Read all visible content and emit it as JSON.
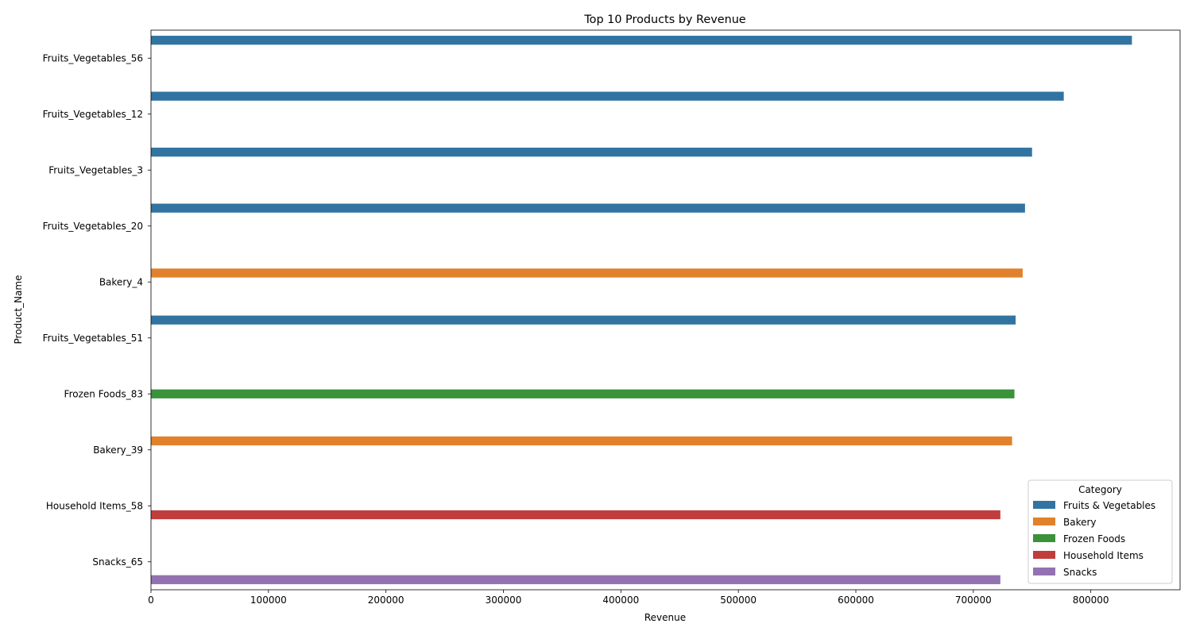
{
  "chart_data": {
    "type": "bar",
    "orientation": "horizontal",
    "title": "Top 10 Products by Revenue",
    "xlabel": "Revenue",
    "ylabel": "Product_Name",
    "xlim": [
      0,
      876000
    ],
    "xticks": [
      0,
      100000,
      200000,
      300000,
      400000,
      500000,
      600000,
      700000,
      800000
    ],
    "grid": false,
    "legend": {
      "title": "Category",
      "placement": "bottom-right"
    },
    "categories": [
      "Fruits_Vegetables_56",
      "Fruits_Vegetables_12",
      "Fruits_Vegetables_3",
      "Fruits_Vegetables_20",
      "Bakery_4",
      "Fruits_Vegetables_51",
      "Frozen Foods_83",
      "Bakery_39",
      "Household Items_58",
      "Snacks_65"
    ],
    "series": [
      {
        "name": "Fruits & Vegetables",
        "color": "#3274a1",
        "values": [
          835000,
          777000,
          750000,
          744000,
          null,
          736000,
          null,
          null,
          null,
          null
        ]
      },
      {
        "name": "Bakery",
        "color": "#e1812c",
        "values": [
          null,
          null,
          null,
          null,
          742000,
          null,
          null,
          733000,
          null,
          null
        ]
      },
      {
        "name": "Frozen Foods",
        "color": "#3a923a",
        "values": [
          null,
          null,
          null,
          null,
          null,
          null,
          735000,
          null,
          null,
          null
        ]
      },
      {
        "name": "Household Items",
        "color": "#c03d3e",
        "values": [
          null,
          null,
          null,
          null,
          null,
          null,
          null,
          null,
          723000,
          null
        ]
      },
      {
        "name": "Snacks",
        "color": "#9372b2",
        "values": [
          null,
          null,
          null,
          null,
          null,
          null,
          null,
          null,
          null,
          723000
        ]
      }
    ]
  }
}
